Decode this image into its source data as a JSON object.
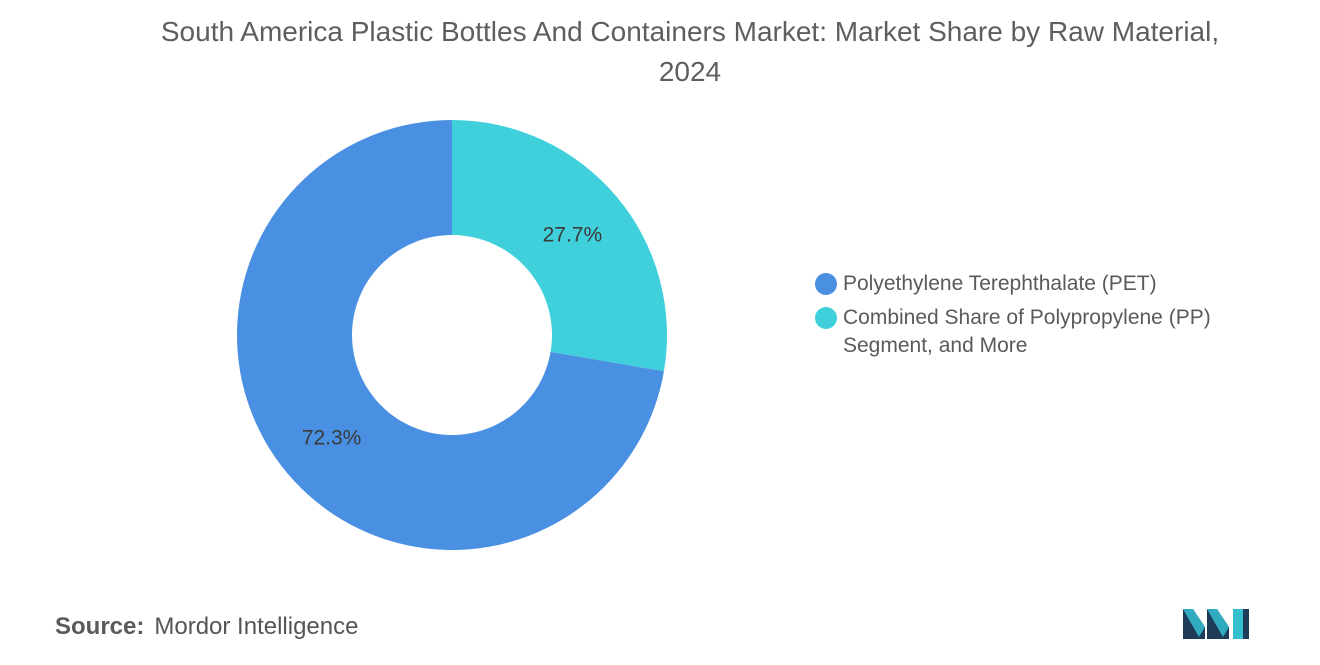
{
  "chart_data": {
    "type": "pie",
    "title": "South America Plastic Bottles And Containers Market: Market Share by Raw Material, 2024",
    "series": [
      {
        "name": "Polyethylene Terephthalate (PET)",
        "value": 72.3,
        "label": "72.3%",
        "color": "#4a90e2"
      },
      {
        "name": "Combined Share of Polypropylene (PP) Segment, and More",
        "value": 27.7,
        "label": "27.7%",
        "color": "#3fd0dc"
      }
    ],
    "legend_position": "right",
    "donut": true
  },
  "source": {
    "label": "Source:",
    "text": "Mordor Intelligence"
  },
  "logo": {
    "icon": "mordor-intelligence-logo",
    "colors": [
      "#1f3b5a",
      "#35c0cf"
    ]
  }
}
